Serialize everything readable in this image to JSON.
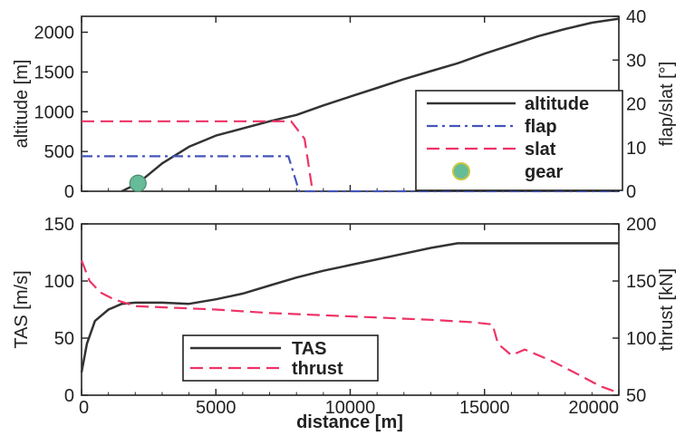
{
  "chart_data": [
    {
      "type": "line",
      "xlabel": "",
      "ylabel": "altitude [m]",
      "y2label": "flap/slat [°]",
      "xlim": [
        0,
        20000
      ],
      "ylim": [
        0,
        2200
      ],
      "y2lim": [
        0,
        40
      ],
      "xticks": [
        0,
        5000,
        10000,
        15000,
        20000
      ],
      "yticks": [
        0,
        500,
        1000,
        1500,
        2000
      ],
      "y2ticks": [
        0,
        10,
        20,
        30,
        40
      ],
      "legend_position": "center-right",
      "grid": false,
      "series": [
        {
          "name": "altitude",
          "axis": "left",
          "color": "#333333",
          "style": "solid",
          "x": [
            1500,
            2100,
            3000,
            4000,
            5000,
            6000,
            7000,
            8000,
            9000,
            10000,
            11000,
            12000,
            13000,
            14000,
            15000,
            16000,
            17000,
            18000,
            19000,
            20000
          ],
          "y": [
            0,
            100,
            350,
            560,
            700,
            790,
            880,
            960,
            1080,
            1190,
            1300,
            1410,
            1510,
            1610,
            1730,
            1840,
            1950,
            2040,
            2120,
            2170
          ]
        },
        {
          "name": "flap",
          "axis": "right",
          "color": "#4455bb",
          "style": "dashdot",
          "x": [
            0,
            4000,
            7700,
            7900,
            8100,
            8300,
            20000
          ],
          "y": [
            8,
            8,
            8,
            4,
            0,
            0,
            0
          ]
        },
        {
          "name": "slat",
          "axis": "right",
          "color": "#ee3366",
          "style": "dashed",
          "x": [
            0,
            7800,
            8300,
            8400,
            8500,
            8600
          ],
          "y": [
            16,
            16,
            12,
            8,
            4,
            0
          ]
        },
        {
          "name": "gear",
          "axis": "left",
          "color": "#66bb99",
          "style": "marker",
          "x": [
            2100
          ],
          "y": [
            100
          ]
        }
      ]
    },
    {
      "type": "line",
      "xlabel": "distance [m]",
      "ylabel": "TAS [m/s]",
      "y2label": "thrust [kN]",
      "xlim": [
        0,
        20000
      ],
      "ylim": [
        0,
        150
      ],
      "y2lim": [
        50,
        200
      ],
      "xticks": [
        0,
        5000,
        10000,
        15000,
        20000
      ],
      "yticks": [
        0,
        50,
        100,
        150
      ],
      "y2ticks": [
        50,
        100,
        150,
        200
      ],
      "legend_position": "bottom-center",
      "grid": false,
      "series": [
        {
          "name": "TAS",
          "axis": "left",
          "color": "#333333",
          "style": "solid",
          "x": [
            0,
            200,
            500,
            1000,
            1500,
            2000,
            3000,
            4000,
            5000,
            6000,
            7000,
            8000,
            9000,
            10000,
            11000,
            12000,
            13000,
            14000,
            15000,
            16000,
            17000,
            18000,
            19000,
            20000
          ],
          "y": [
            20,
            45,
            65,
            75,
            80,
            81,
            81,
            80,
            84,
            89,
            96,
            103,
            109,
            114,
            119,
            124,
            129,
            133,
            133,
            133,
            133,
            133,
            133,
            133
          ]
        },
        {
          "name": "thrust",
          "axis": "right",
          "color": "#ee3366",
          "style": "dashed",
          "x": [
            0,
            300,
            700,
            1200,
            2000,
            3000,
            5000,
            7000,
            9000,
            11000,
            13000,
            14500,
            15300,
            15500,
            16000,
            16500,
            17500,
            18500,
            19300,
            20000
          ],
          "y": [
            168,
            150,
            140,
            134,
            128,
            127,
            125,
            122,
            120,
            118,
            116,
            114,
            112,
            95,
            85,
            90,
            80,
            68,
            58,
            52
          ]
        }
      ]
    }
  ]
}
